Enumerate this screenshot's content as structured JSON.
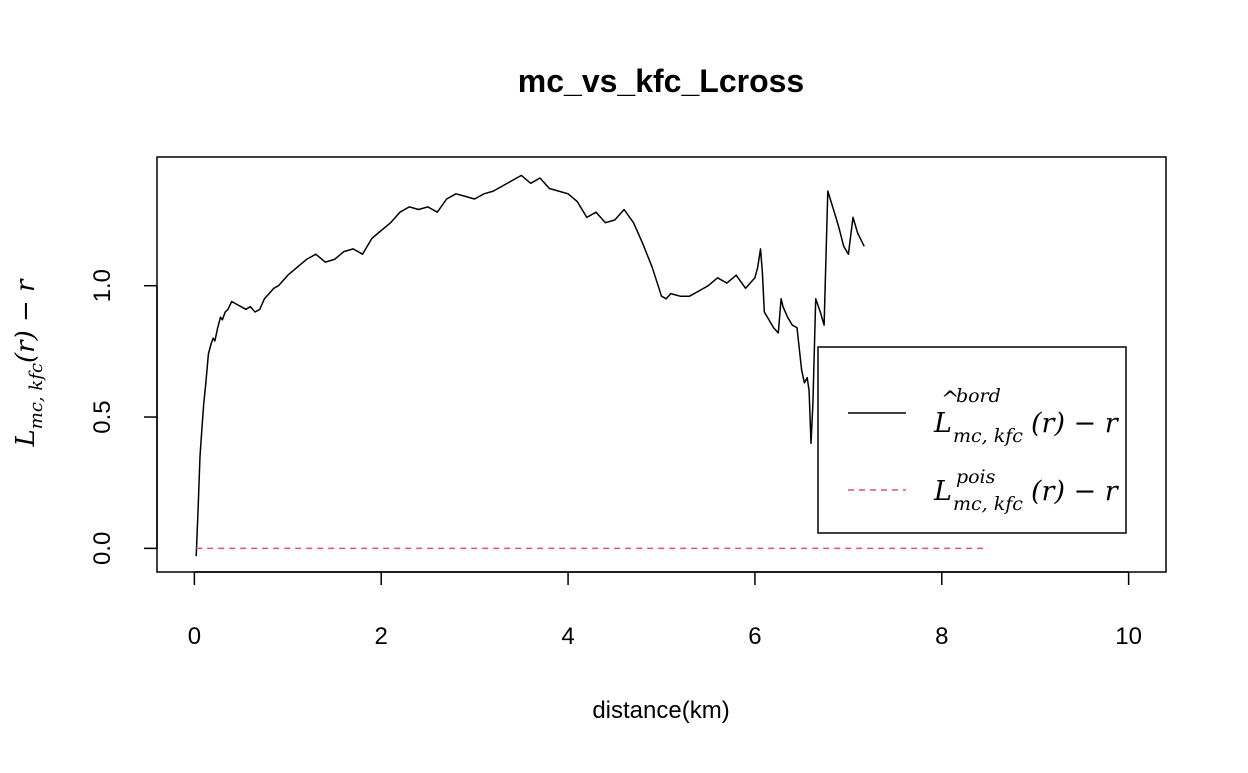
{
  "chart_data": {
    "type": "line",
    "title": "mc_vs_kfc_Lcross",
    "xlabel": "distance(km)",
    "ylabel": {
      "base": "L",
      "sub": "mc, kfc",
      "rest": "(r) − r"
    },
    "xlim": [
      -0.4,
      10.4
    ],
    "ylim": [
      -0.09,
      1.49
    ],
    "x_ticks": [
      "0",
      "2",
      "4",
      "6",
      "8",
      "10"
    ],
    "x_tick_values": [
      0,
      2,
      4,
      6,
      8,
      10
    ],
    "y_ticks": [
      "0.0",
      "0.5",
      "1.0"
    ],
    "y_tick_values": [
      0,
      0.5,
      1.0
    ],
    "grid": false,
    "legend_position": "lower-right",
    "series": [
      {
        "name": "L^bord_{mc, kfc}(r) − r",
        "legend": {
          "base": "L",
          "hat": "^",
          "sup": "bord",
          "sub": "mc, kfc",
          "rest": "(r) − r"
        },
        "color": "#000000",
        "dash": "solid",
        "x": [
          0.02,
          0.04,
          0.06,
          0.08,
          0.1,
          0.12,
          0.15,
          0.18,
          0.2,
          0.22,
          0.25,
          0.28,
          0.3,
          0.33,
          0.36,
          0.4,
          0.45,
          0.5,
          0.55,
          0.6,
          0.65,
          0.7,
          0.75,
          0.8,
          0.85,
          0.9,
          1.0,
          1.1,
          1.2,
          1.3,
          1.4,
          1.5,
          1.6,
          1.7,
          1.8,
          1.9,
          2.0,
          2.1,
          2.2,
          2.3,
          2.4,
          2.5,
          2.6,
          2.7,
          2.8,
          2.9,
          3.0,
          3.1,
          3.2,
          3.3,
          3.4,
          3.5,
          3.6,
          3.7,
          3.8,
          3.9,
          4.0,
          4.1,
          4.2,
          4.3,
          4.4,
          4.5,
          4.6,
          4.7,
          4.8,
          4.9,
          5.0,
          5.05,
          5.1,
          5.2,
          5.3,
          5.4,
          5.5,
          5.6,
          5.7,
          5.8,
          5.9,
          6.0,
          6.03,
          6.06,
          6.08,
          6.1,
          6.15,
          6.2,
          6.25,
          6.28,
          6.3,
          6.35,
          6.4,
          6.45,
          6.5,
          6.53,
          6.56,
          6.58,
          6.6,
          6.62,
          6.65,
          6.7,
          6.74,
          6.78,
          6.85,
          6.9,
          6.95,
          7.0,
          7.05,
          7.1,
          7.17
        ],
        "y": [
          -0.03,
          0.15,
          0.35,
          0.45,
          0.55,
          0.62,
          0.74,
          0.78,
          0.8,
          0.79,
          0.84,
          0.88,
          0.87,
          0.9,
          0.91,
          0.94,
          0.93,
          0.92,
          0.91,
          0.92,
          0.9,
          0.91,
          0.95,
          0.97,
          0.99,
          1.0,
          1.04,
          1.07,
          1.1,
          1.12,
          1.09,
          1.1,
          1.13,
          1.14,
          1.12,
          1.18,
          1.21,
          1.24,
          1.28,
          1.3,
          1.29,
          1.3,
          1.28,
          1.33,
          1.35,
          1.34,
          1.33,
          1.35,
          1.36,
          1.38,
          1.4,
          1.42,
          1.39,
          1.41,
          1.37,
          1.36,
          1.35,
          1.32,
          1.26,
          1.28,
          1.24,
          1.25,
          1.29,
          1.24,
          1.16,
          1.07,
          0.96,
          0.95,
          0.97,
          0.96,
          0.96,
          0.98,
          1.0,
          1.03,
          1.01,
          1.04,
          0.99,
          1.03,
          1.07,
          1.14,
          1.05,
          0.9,
          0.87,
          0.84,
          0.82,
          0.95,
          0.92,
          0.88,
          0.85,
          0.84,
          0.68,
          0.63,
          0.65,
          0.6,
          0.4,
          0.55,
          0.95,
          0.9,
          0.85,
          1.36,
          1.28,
          1.22,
          1.15,
          1.12,
          1.26,
          1.2,
          1.15
        ]
      },
      {
        "name": "L^pois_{mc, kfc}(r) − r",
        "legend": {
          "base": "L",
          "hat": "",
          "sup": "pois",
          "sub": "mc, kfc",
          "rest": "(r) − r"
        },
        "color": "#DF536B",
        "dash": "dashed",
        "x": [
          0.02,
          8.5
        ],
        "y": [
          0.0,
          0.0
        ]
      }
    ]
  }
}
